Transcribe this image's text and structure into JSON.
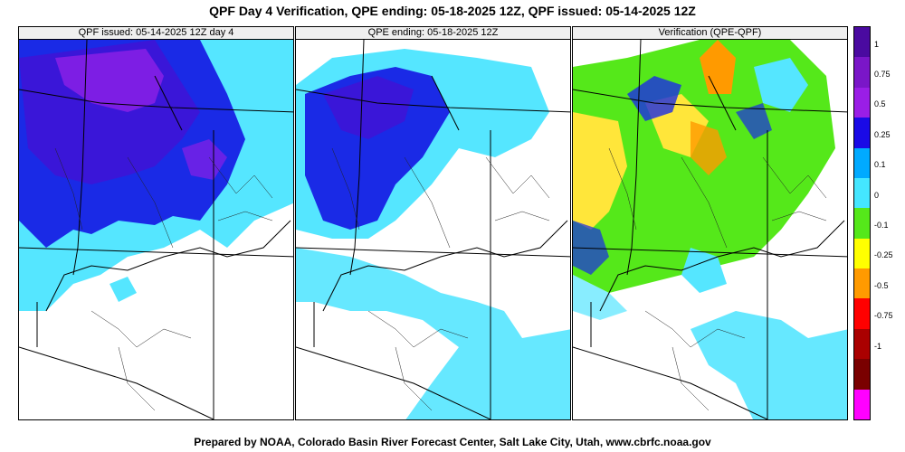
{
  "title": "QPF Day 4 Verification, QPE ending: 05-18-2025 12Z, QPF issued: 05-14-2025 12Z",
  "footer": "Prepared by NOAA, Colorado Basin River Forecast Center, Salt Lake City, Utah, www.cbrfc.noaa.gov",
  "panels": [
    {
      "label": "QPF issued: 05-14-2025 12Z day 4"
    },
    {
      "label": "QPE ending: 05-18-2025 12Z"
    },
    {
      "label": "Verification (QPE-QPF)"
    }
  ],
  "colorbar": {
    "colors": [
      "#4a0aa0",
      "#7a16c8",
      "#9a1ee6",
      "#1a0ae6",
      "#00aaff",
      "#44e6ff",
      "#55e81a",
      "#ffff00",
      "#ff9a00",
      "#ff0000",
      "#aa0000",
      "#7a0000",
      "#ff00ff"
    ],
    "labels": [
      "1",
      "0.75",
      "0.5",
      "0.25",
      "0.1",
      "0",
      "-0.1",
      "-0.25",
      "-0.5",
      "-0.75",
      "-1"
    ]
  },
  "legend_colors": {
    "heavy": "#3a16d8",
    "moderate": "#1a2ae6",
    "light": "#55e6ff",
    "purple": "#8a20e6",
    "green": "#55e81a",
    "yellow": "#ffe63a",
    "orange": "#ff9a00"
  }
}
